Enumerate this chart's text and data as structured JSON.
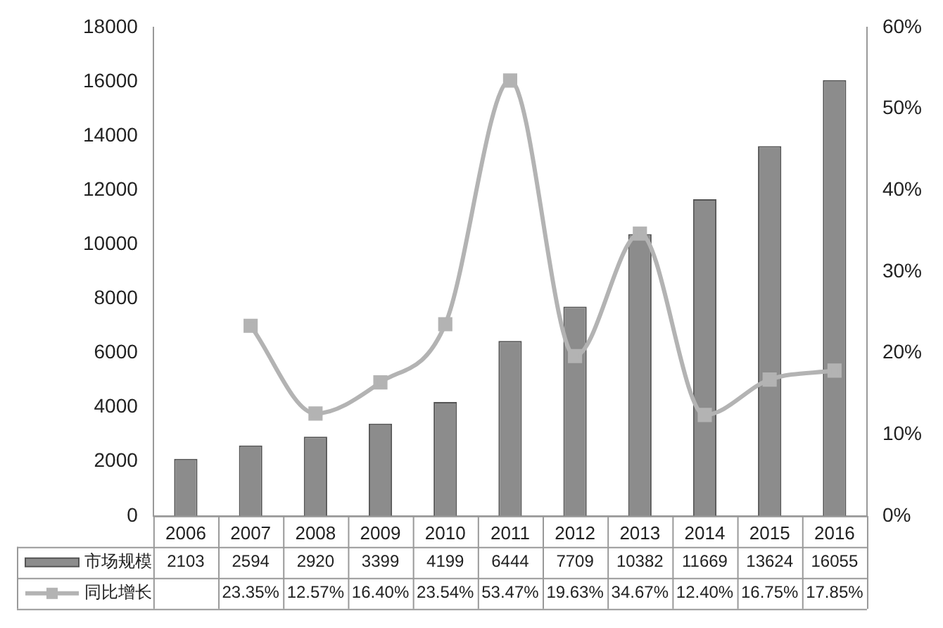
{
  "chart_data": {
    "type": "bar",
    "categories": [
      "2006",
      "2007",
      "2008",
      "2009",
      "2010",
      "2011",
      "2012",
      "2013",
      "2014",
      "2015",
      "2016"
    ],
    "series": [
      {
        "name": "市场规模",
        "color": "#8c8c8c",
        "values": [
          2103,
          2594,
          2920,
          3399,
          4199,
          6444,
          7709,
          10382,
          11669,
          13624,
          16055
        ],
        "value_labels": [
          "2103",
          "2594",
          "2920",
          "3399",
          "4199",
          "6444",
          "7709",
          "10382",
          "11669",
          "13624",
          "16055"
        ]
      },
      {
        "name": "同比增长",
        "type": "line",
        "axis": "y2",
        "color": "#b3b3b3",
        "values": [
          null,
          23.35,
          12.57,
          16.4,
          23.54,
          53.47,
          19.63,
          34.67,
          12.4,
          16.75,
          17.85
        ],
        "value_labels": [
          null,
          "23.35%",
          "12.57%",
          "16.40%",
          "23.54%",
          "53.47%",
          "19.63%",
          "34.67%",
          "12.40%",
          "16.75%",
          "17.85%"
        ]
      }
    ],
    "ylim": [
      0,
      18000
    ],
    "yticks": [
      0,
      2000,
      4000,
      6000,
      8000,
      10000,
      12000,
      14000,
      16000,
      18000
    ],
    "y2lim": [
      0,
      60
    ],
    "y2ticks": [
      {
        "value": 0,
        "label": "0%"
      },
      {
        "value": 10,
        "label": "10%"
      },
      {
        "value": 20,
        "label": "20%"
      },
      {
        "value": 30,
        "label": "30%"
      },
      {
        "value": 40,
        "label": "40%"
      },
      {
        "value": 50,
        "label": "50%"
      },
      {
        "value": 60,
        "label": "60%"
      }
    ],
    "marker": "square",
    "legend": "bottom",
    "grid": false
  }
}
